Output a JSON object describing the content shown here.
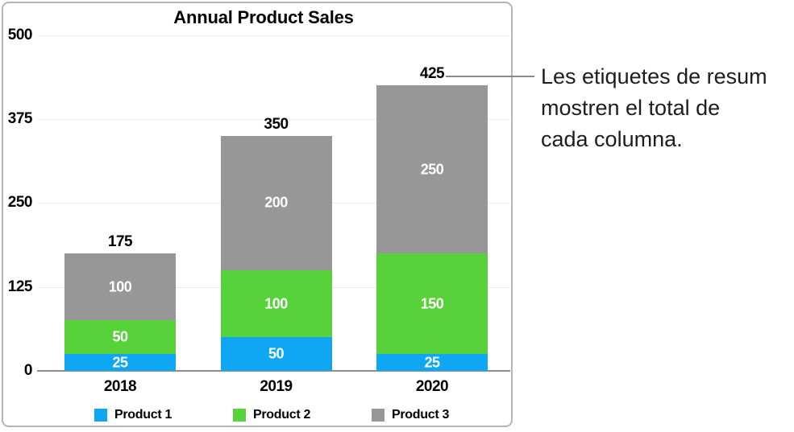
{
  "annotation": {
    "lines": [
      "Les etiquetes de resum",
      "mostren el total de",
      "cada columna."
    ]
  },
  "colors": {
    "product1_blue": "#0fa7f3",
    "product2_green": "#58d23a",
    "product3_gray": "#979797",
    "gridline": "#e9e9e9",
    "axis_line": "#8f8f8f",
    "panel_border": "#b5b5b5",
    "callout_line": "#8a8a8a",
    "bar_value_text": "#ffffff",
    "chart_text": "#000000",
    "annotation_text": "#1d1d1f"
  },
  "chart_data": {
    "type": "bar",
    "variant": "stacked-column",
    "title": "Annual Product Sales",
    "categories": [
      "2018",
      "2019",
      "2020"
    ],
    "series": [
      {
        "name": "Product 1",
        "color": "#0fa7f3",
        "values": [
          25,
          50,
          25
        ]
      },
      {
        "name": "Product 2",
        "color": "#58d23a",
        "values": [
          50,
          100,
          150
        ]
      },
      {
        "name": "Product 3",
        "color": "#979797",
        "values": [
          100,
          200,
          250
        ]
      }
    ],
    "totals": [
      175,
      350,
      425
    ],
    "y_ticks": [
      0,
      125,
      250,
      375,
      500
    ],
    "ylim": [
      0,
      500
    ],
    "xlabel": "",
    "ylabel": "",
    "grid": true,
    "legend_position": "bottom",
    "summary_labels_shown": true
  }
}
